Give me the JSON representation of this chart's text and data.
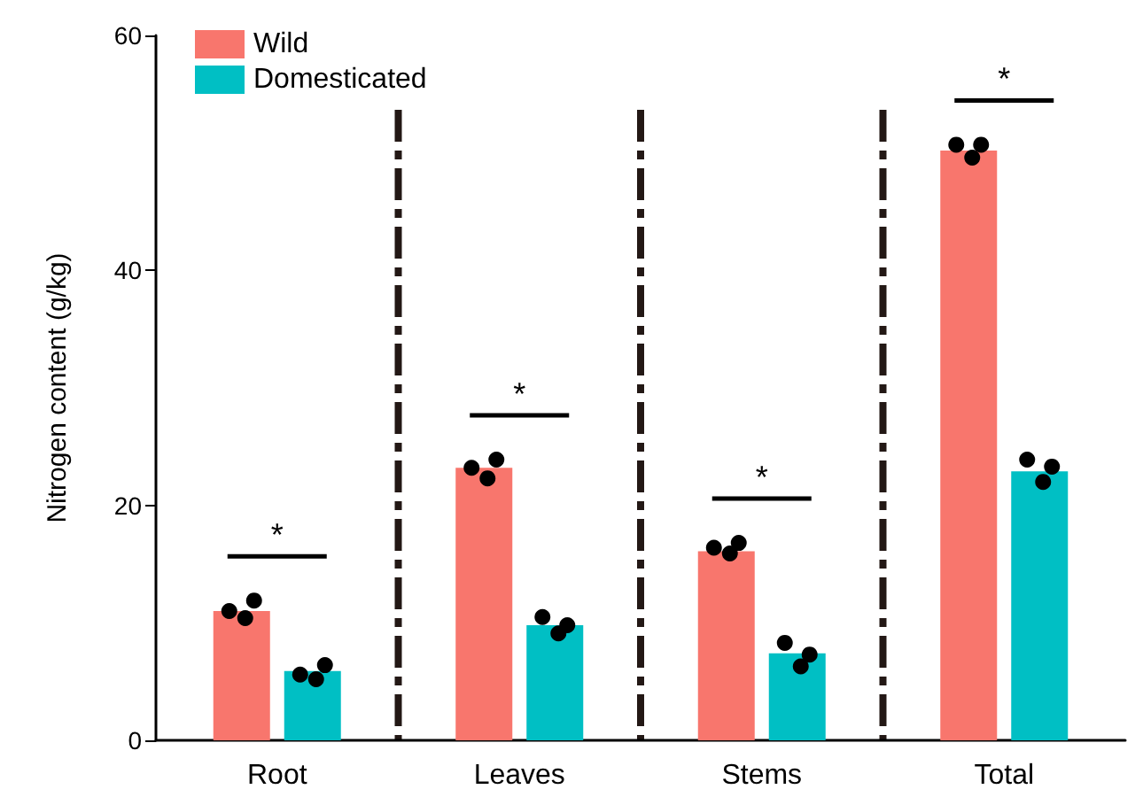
{
  "chart_data": {
    "type": "bar",
    "ylabel": "Nitrogen content (g/kg)",
    "categories": [
      "Root",
      "Leaves",
      "Stems",
      "Total"
    ],
    "series": [
      {
        "name": "Wild",
        "color": "#f8766d",
        "values": [
          11.0,
          23.2,
          16.1,
          50.2
        ]
      },
      {
        "name": "Domesticated",
        "color": "#00bfc4",
        "values": [
          5.9,
          9.8,
          7.4,
          22.9
        ]
      },
      {
        "type": "scatter",
        "color": "#000000",
        "x": [
          "Root",
          "Root",
          "Root",
          "Leaves",
          "Leaves",
          "Leaves",
          "Stems",
          "Stems",
          "Stems",
          "Total",
          "Total",
          "Total"
        ],
        "values": [
          11.0,
          11.9,
          10.4,
          23.2,
          23.9,
          22.3,
          16.4,
          16.8,
          15.9,
          50.7,
          50.7,
          49.6
        ]
      },
      {
        "type": "scatter",
        "color": "#000000",
        "x": [
          "Root",
          "Root",
          "Root",
          "Leaves",
          "Leaves",
          "Leaves",
          "Stems",
          "Stems",
          "Stems",
          "Total",
          "Total",
          "Total"
        ],
        "values": [
          5.6,
          6.4,
          5.2,
          10.5,
          9.8,
          9.1,
          8.3,
          7.3,
          6.3,
          23.9,
          23.3,
          22.0
        ]
      }
    ],
    "annotations": [
      "*",
      "*",
      "*",
      "*"
    ],
    "ylim": [
      0,
      60
    ],
    "yticks": [
      0,
      20,
      40,
      60
    ],
    "grid": false,
    "legend": "top left",
    "marker": "circle"
  }
}
